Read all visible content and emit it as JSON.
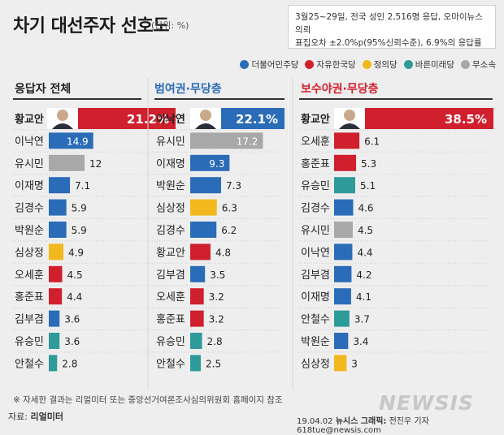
{
  "header": {
    "title": "차기 대선주자 선호도",
    "unit": "(단위: %)"
  },
  "survey_note": {
    "line1": "3월25~29일, 전국 성인 2,516명 응답, 오마이뉴스 의뢰",
    "line2": "표집오차 ±2.0%p(95%신뢰수준), 6.9%의 응답률"
  },
  "legend": [
    {
      "label": "더불어민주당",
      "color": "#2b6cb8"
    },
    {
      "label": "자유한국당",
      "color": "#d0202e"
    },
    {
      "label": "정의당",
      "color": "#f2b81d"
    },
    {
      "label": "바른미래당",
      "color": "#2e9a9a"
    },
    {
      "label": "무소속",
      "color": "#a8a8a8"
    }
  ],
  "chart_data": [
    {
      "type": "bar",
      "title": "응답자 전체",
      "title_color": "#222222",
      "categories": [
        "황교안",
        "이낙연",
        "유시민",
        "이재명",
        "김경수",
        "박원순",
        "심상정",
        "오세훈",
        "홍준표",
        "김부겸",
        "유승민",
        "안철수"
      ],
      "values": [
        21.2,
        14.9,
        12,
        7.1,
        5.9,
        5.9,
        4.9,
        4.5,
        4.4,
        3.6,
        3.6,
        2.8
      ],
      "value_labels": [
        "21.2%",
        "14.9",
        "12",
        "7.1",
        "5.9",
        "5.9",
        "4.9",
        "4.5",
        "4.4",
        "3.6",
        "3.6",
        "2.8"
      ],
      "parties": [
        "#d0202e",
        "#2b6cb8",
        "#a8a8a8",
        "#2b6cb8",
        "#2b6cb8",
        "#2b6cb8",
        "#f2b81d",
        "#d0202e",
        "#d0202e",
        "#2b6cb8",
        "#2e9a9a",
        "#2e9a9a"
      ]
    },
    {
      "type": "bar",
      "title": "범여권·무당층",
      "title_color": "#2b6cb8",
      "categories": [
        "이낙연",
        "유시민",
        "이재명",
        "박원순",
        "심상정",
        "김경수",
        "황교안",
        "김부겸",
        "오세훈",
        "홍준표",
        "유승민",
        "안철수"
      ],
      "values": [
        22.1,
        17.2,
        9.3,
        7.3,
        6.3,
        6.2,
        4.8,
        3.5,
        3.2,
        3.2,
        2.8,
        2.5
      ],
      "value_labels": [
        "22.1%",
        "17.2",
        "9.3",
        "7.3",
        "6.3",
        "6.2",
        "4.8",
        "3.5",
        "3.2",
        "3.2",
        "2.8",
        "2.5"
      ],
      "parties": [
        "#2b6cb8",
        "#a8a8a8",
        "#2b6cb8",
        "#2b6cb8",
        "#f2b81d",
        "#2b6cb8",
        "#d0202e",
        "#2b6cb8",
        "#d0202e",
        "#d0202e",
        "#2e9a9a",
        "#2e9a9a"
      ]
    },
    {
      "type": "bar",
      "title": "보수야권·무당층",
      "title_color": "#d0202e",
      "categories": [
        "황교안",
        "오세훈",
        "홍준표",
        "유승민",
        "김경수",
        "유시민",
        "이낙연",
        "김부겸",
        "이재명",
        "안철수",
        "박원순",
        "심상정"
      ],
      "values": [
        38.5,
        6.1,
        5.3,
        5.1,
        4.6,
        4.5,
        4.4,
        4.2,
        4.1,
        3.7,
        3.4,
        3
      ],
      "value_labels": [
        "38.5%",
        "6.1",
        "5.3",
        "5.1",
        "4.6",
        "4.5",
        "4.4",
        "4.2",
        "4.1",
        "3.7",
        "3.4",
        "3"
      ],
      "parties": [
        "#d0202e",
        "#d0202e",
        "#d0202e",
        "#2e9a9a",
        "#2b6cb8",
        "#a8a8a8",
        "#2b6cb8",
        "#2b6cb8",
        "#2b6cb8",
        "#2e9a9a",
        "#2b6cb8",
        "#f2b81d"
      ]
    }
  ],
  "footer": {
    "note": "※ 자세한 결과는 리얼미터 또는 중앙선거여론조사심의위원회 홈페이지 참조",
    "source_label": "자료:",
    "source_name": "리얼미터",
    "date": "19.04.02",
    "agency": "뉴시스 그래픽:",
    "credit": "전진우 기자 618tue@newsis.com",
    "logo": "NEWSIS"
  }
}
